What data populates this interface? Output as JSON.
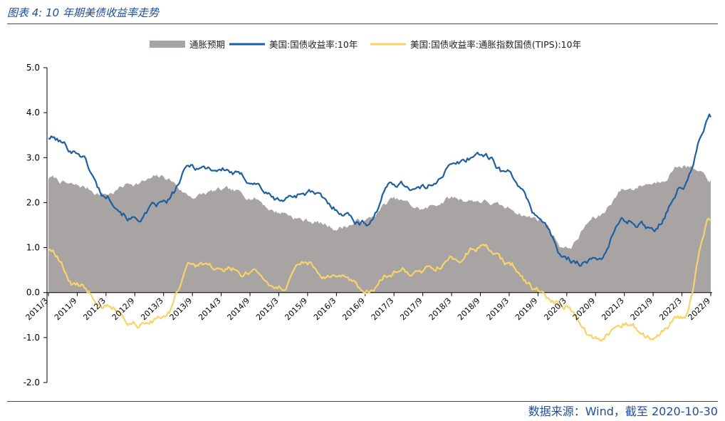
{
  "caption": "图表 4: 10 年期美债收益率走势",
  "source": "数据来源：Wind，截至 2020-10-30",
  "colors": {
    "breakeven": "#a8a4a4",
    "nominal": "#1f5fa0",
    "tips": "#f7d36a",
    "accent": "#1f4e9a"
  },
  "chart_data": {
    "type": "line",
    "title": "",
    "xlabel": "",
    "ylabel": "",
    "ylim": [
      -2.0,
      5.0
    ],
    "yticks": [
      "5.0",
      "4.0",
      "3.0",
      "2.0",
      "1.0",
      "0.0",
      "-1.0",
      "-2.0"
    ],
    "legend_position": "top",
    "categories": [
      "2011/3",
      "2011/9",
      "2012/3",
      "2012/9",
      "2013/3",
      "2013/9",
      "2014/3",
      "2014/9",
      "2015/3",
      "2015/9",
      "2016/3",
      "2016/9",
      "2017/3",
      "2017/9",
      "2018/3",
      "2018/9",
      "2019/3",
      "2019/9",
      "2020/3",
      "2020/9",
      "2021/3",
      "2021/9",
      "2022/3",
      "2022/9"
    ],
    "series": [
      {
        "name": "通胀预期",
        "kind": "area",
        "values": [
          2.55,
          2.35,
          2.2,
          2.45,
          2.55,
          2.15,
          2.25,
          2.15,
          1.8,
          1.6,
          1.45,
          1.6,
          2.05,
          1.85,
          2.1,
          2.05,
          1.85,
          1.65,
          1.0,
          1.65,
          2.3,
          2.45,
          2.85,
          2.5
        ]
      },
      {
        "name": "美国:国债收益率:10年",
        "kind": "line",
        "values": [
          3.45,
          3.15,
          2.15,
          1.65,
          1.95,
          2.8,
          2.75,
          2.5,
          2.05,
          2.25,
          1.85,
          1.55,
          2.45,
          2.3,
          2.8,
          3.1,
          2.65,
          1.7,
          0.7,
          0.7,
          1.6,
          1.45,
          2.35,
          3.9
        ]
      },
      {
        "name": "美国:国债收益率:通胀指数国债(TIPS):10年",
        "kind": "line",
        "values": [
          0.95,
          0.15,
          -0.2,
          -0.7,
          -0.6,
          0.6,
          0.55,
          0.45,
          0.15,
          0.6,
          0.3,
          0.05,
          0.5,
          0.45,
          0.75,
          1.05,
          0.6,
          0.05,
          -0.3,
          -1.0,
          -0.65,
          -1.0,
          -0.55,
          1.6
        ]
      }
    ]
  }
}
